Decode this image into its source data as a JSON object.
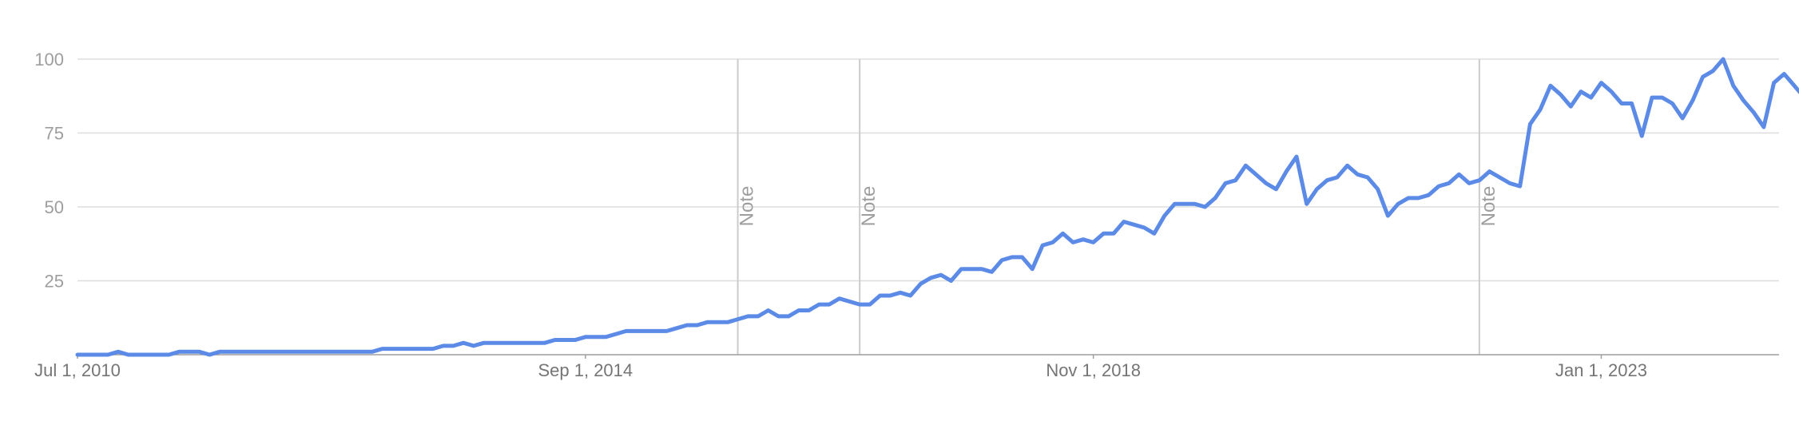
{
  "chart_data": {
    "type": "line",
    "title": "",
    "xlabel": "",
    "ylabel": "",
    "x_start": "2010-07-01",
    "x_step_months": 1,
    "ylim": [
      0,
      100
    ],
    "yticks": [
      25,
      50,
      75,
      100
    ],
    "xtick_labels": [
      {
        "date": "2010-07-01",
        "label": "Jul 1, 2010"
      },
      {
        "date": "2014-09-01",
        "label": "Sep 1, 2014"
      },
      {
        "date": "2018-11-01",
        "label": "Nov 1, 2018"
      },
      {
        "date": "2023-01-01",
        "label": "Jan 1, 2023"
      }
    ],
    "annotations": [
      {
        "date": "2015-12-01",
        "label": "Note"
      },
      {
        "date": "2016-12-01",
        "label": "Note"
      },
      {
        "date": "2022-01-01",
        "label": "Note"
      }
    ],
    "grid": true,
    "series_color": "#5b8be6",
    "values": [
      0,
      0,
      0,
      0,
      1,
      0,
      0,
      0,
      0,
      0,
      1,
      1,
      1,
      0,
      1,
      1,
      1,
      1,
      1,
      1,
      1,
      1,
      1,
      1,
      1,
      1,
      1,
      1,
      1,
      1,
      2,
      2,
      2,
      2,
      2,
      2,
      3,
      3,
      4,
      3,
      4,
      4,
      4,
      4,
      4,
      4,
      4,
      5,
      5,
      5,
      6,
      6,
      6,
      7,
      8,
      8,
      8,
      8,
      8,
      9,
      10,
      10,
      11,
      11,
      11,
      12,
      13,
      13,
      15,
      13,
      13,
      15,
      15,
      17,
      17,
      19,
      18,
      17,
      17,
      20,
      20,
      21,
      20,
      24,
      26,
      27,
      25,
      29,
      29,
      29,
      28,
      32,
      33,
      33,
      29,
      37,
      38,
      41,
      38,
      39,
      38,
      41,
      41,
      45,
      44,
      43,
      41,
      47,
      51,
      51,
      51,
      50,
      53,
      58,
      59,
      64,
      61,
      58,
      56,
      62,
      67,
      51,
      56,
      59,
      60,
      64,
      61,
      60,
      56,
      47,
      51,
      53,
      53,
      54,
      57,
      58,
      61,
      58,
      59,
      62,
      60,
      58,
      57,
      78,
      83,
      91,
      88,
      84,
      89,
      87,
      92,
      89,
      85,
      85,
      74,
      87,
      87,
      85,
      80,
      86,
      94,
      96,
      100,
      91,
      86,
      82,
      77,
      92,
      95,
      91,
      87,
      90,
      89,
      93,
      87
    ]
  }
}
